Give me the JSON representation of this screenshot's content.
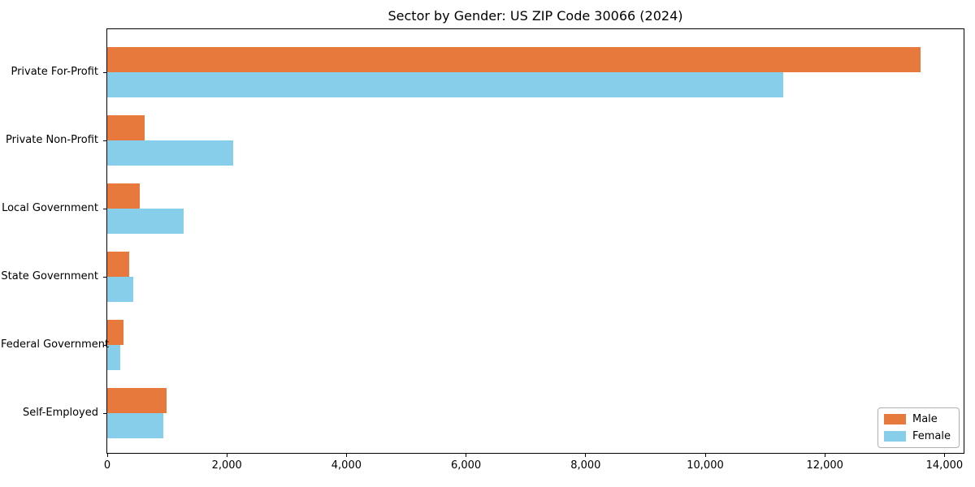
{
  "title": "Sector by Gender: US ZIP Code 30066 (2024)",
  "chart_data": {
    "type": "bar",
    "orientation": "horizontal",
    "title": "Sector by Gender: US ZIP Code 30066 (2024)",
    "xlabel": "",
    "ylabel": "",
    "categories": [
      "Private For-Profit",
      "Private Non-Profit",
      "Local Government",
      "State Government",
      "Federal Government",
      "Self-Employed"
    ],
    "series": [
      {
        "name": "Male",
        "color": "#e8793d",
        "values": [
          13600,
          620,
          540,
          370,
          270,
          990
        ]
      },
      {
        "name": "Female",
        "color": "#87ceeb",
        "values": [
          11300,
          2100,
          1280,
          430,
          210,
          940
        ]
      }
    ],
    "xlim": [
      0,
      14320
    ],
    "xticks": [
      0,
      2000,
      4000,
      6000,
      8000,
      10000,
      12000,
      14000
    ],
    "xtick_labels": [
      "0",
      "2,000",
      "4,000",
      "6,000",
      "8,000",
      "10,000",
      "12,000",
      "14,000"
    ],
    "grid": false,
    "legend": {
      "position": "lower right",
      "entries": [
        "Male",
        "Female"
      ]
    }
  },
  "colors": {
    "male": "#e8793d",
    "female": "#87ceeb",
    "axis": "#000000",
    "legend_border": "#b0b0b0",
    "background": "#ffffff"
  }
}
